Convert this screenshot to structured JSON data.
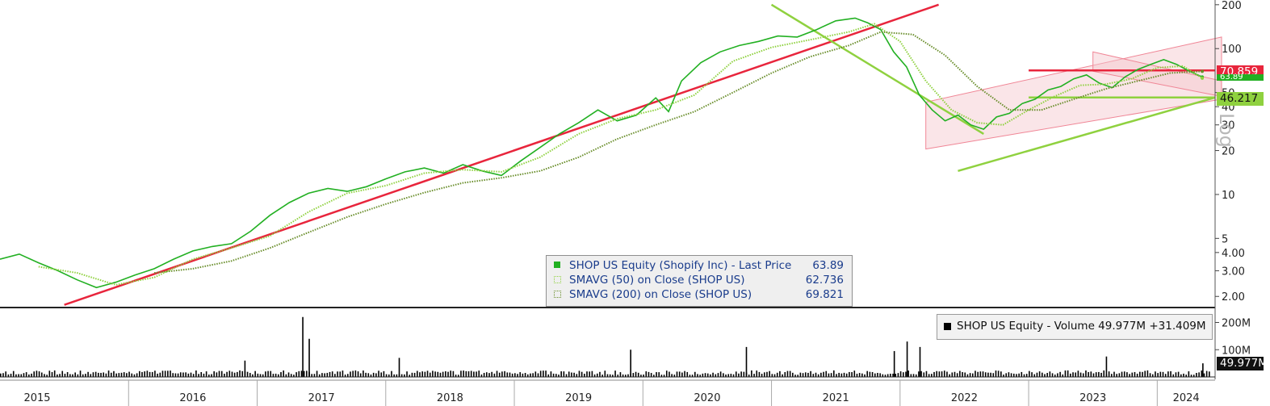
{
  "chart_data": [
    {
      "type": "line",
      "scale": "log",
      "ylim": [
        1.7,
        210
      ],
      "ytick_labels": [
        "200",
        "100",
        "50",
        "40",
        "30",
        "20",
        "10",
        "5",
        "4.00",
        "3.00",
        "2.00"
      ],
      "ytick_values": [
        200,
        100,
        50,
        40,
        30,
        20,
        10,
        5,
        4,
        3,
        2
      ],
      "yaxis_title": "Log",
      "x_labels": [
        "2015",
        "2016",
        "2017",
        "2018",
        "2019",
        "2020",
        "2021",
        "2022",
        "2023",
        "2024"
      ],
      "xlim": [
        2015.0,
        2024.45
      ],
      "series": [
        {
          "name": "SHOP US Equity (Shopify Inc) - Last Price",
          "last": "63.89",
          "color": "#22b022",
          "x": [
            2015.0,
            2015.15,
            2015.3,
            2015.45,
            2015.6,
            2015.75,
            2015.9,
            2016.05,
            2016.2,
            2016.35,
            2016.5,
            2016.65,
            2016.8,
            2016.95,
            2017.1,
            2017.25,
            2017.4,
            2017.55,
            2017.7,
            2017.85,
            2018.0,
            2018.15,
            2018.3,
            2018.45,
            2018.6,
            2018.75,
            2018.9,
            2019.05,
            2019.2,
            2019.35,
            2019.5,
            2019.65,
            2019.8,
            2019.95,
            2020.1,
            2020.2,
            2020.3,
            2020.45,
            2020.6,
            2020.75,
            2020.9,
            2021.05,
            2021.2,
            2021.35,
            2021.5,
            2021.65,
            2021.75,
            2021.85,
            2021.95,
            2022.05,
            2022.15,
            2022.25,
            2022.35,
            2022.45,
            2022.55,
            2022.65,
            2022.75,
            2022.85,
            2022.95,
            2023.05,
            2023.15,
            2023.25,
            2023.35,
            2023.45,
            2023.55,
            2023.65,
            2023.75,
            2023.85,
            2023.95,
            2024.05,
            2024.15,
            2024.25,
            2024.35
          ],
          "values": [
            3.6,
            3.9,
            3.4,
            3.0,
            2.6,
            2.3,
            2.5,
            2.8,
            3.1,
            3.6,
            4.1,
            4.4,
            4.6,
            5.6,
            7.2,
            8.8,
            10.2,
            11.0,
            10.5,
            11.3,
            12.8,
            14.3,
            15.2,
            14.0,
            16.0,
            14.5,
            13.5,
            17.0,
            21.0,
            26.0,
            31.0,
            38.0,
            32.0,
            35.0,
            46.0,
            37.0,
            60.0,
            80.0,
            95.0,
            105.0,
            112.0,
            122.0,
            120.0,
            135.0,
            155.0,
            162.0,
            150.0,
            135.0,
            95.0,
            75.0,
            48.0,
            38.0,
            32.0,
            35.0,
            30.0,
            28.0,
            34.0,
            36.0,
            42.0,
            45.0,
            52.0,
            55.0,
            62.0,
            66.0,
            58.0,
            54.0,
            64.0,
            72.0,
            78.0,
            84.0,
            78.0,
            70.0,
            63.89
          ]
        },
        {
          "name": "SMAVG (50) on Close (SHOP US)",
          "last": "62.736",
          "color": "#8fd13f",
          "x": [
            2015.3,
            2015.6,
            2015.9,
            2016.2,
            2016.5,
            2016.8,
            2017.1,
            2017.4,
            2017.7,
            2018.0,
            2018.3,
            2018.6,
            2018.9,
            2019.2,
            2019.5,
            2019.8,
            2020.1,
            2020.4,
            2020.7,
            2021.0,
            2021.3,
            2021.6,
            2021.8,
            2022.0,
            2022.2,
            2022.4,
            2022.6,
            2022.8,
            2023.0,
            2023.2,
            2023.4,
            2023.6,
            2023.8,
            2024.0,
            2024.2,
            2024.35
          ],
          "values": [
            3.2,
            2.9,
            2.4,
            2.7,
            3.6,
            4.3,
            5.2,
            7.6,
            10.2,
            11.5,
            14.0,
            14.8,
            14.3,
            18.0,
            26.0,
            33.0,
            38.0,
            48.0,
            82.0,
            102.0,
            115.0,
            130.0,
            148.0,
            112.0,
            60.0,
            38.0,
            31.0,
            30.0,
            38.0,
            47.0,
            56.0,
            57.0,
            62.0,
            74.0,
            76.0,
            62.736
          ]
        },
        {
          "name": "SMAVG (200) on Close (SHOP US)",
          "last": "69.821",
          "color": "#6a8e2c",
          "x": [
            2016.2,
            2016.5,
            2016.8,
            2017.1,
            2017.4,
            2017.7,
            2018.0,
            2018.3,
            2018.6,
            2018.9,
            2019.2,
            2019.5,
            2019.8,
            2020.1,
            2020.4,
            2020.7,
            2021.0,
            2021.3,
            2021.6,
            2021.85,
            2022.1,
            2022.35,
            2022.6,
            2022.85,
            2023.1,
            2023.35,
            2023.6,
            2023.85,
            2024.1,
            2024.35
          ],
          "values": [
            2.9,
            3.1,
            3.5,
            4.3,
            5.5,
            7.0,
            8.6,
            10.3,
            12.0,
            13.0,
            14.5,
            18.0,
            24.0,
            30.0,
            37.0,
            50.0,
            68.0,
            88.0,
            105.0,
            130.0,
            125.0,
            90.0,
            55.0,
            38.0,
            38.0,
            45.0,
            53.0,
            60.0,
            68.0,
            69.821
          ]
        }
      ],
      "trendlines": [
        {
          "color": "#e8253c",
          "from": [
            2015.5,
            1.75
          ],
          "to": [
            2022.3,
            200
          ]
        },
        {
          "color": "#e8253c",
          "from": [
            2023.0,
            70.859
          ],
          "to": [
            2024.45,
            70.859
          ]
        },
        {
          "color": "#8fd13f",
          "from": [
            2023.0,
            46.217
          ],
          "to": [
            2024.45,
            46.217
          ]
        },
        {
          "color": "#8fd13f",
          "from": [
            2021.0,
            200
          ],
          "to": [
            2022.65,
            26
          ]
        },
        {
          "color": "#8fd13f",
          "from": [
            2022.45,
            14.5
          ],
          "to": [
            2024.45,
            46.217
          ]
        }
      ],
      "channels": [
        {
          "color": "#f5c5cc",
          "edge_color": "#f08696",
          "lower": [
            [
              2022.2,
              20.5
            ],
            [
              2024.5,
              45
            ]
          ],
          "upper": [
            [
              2022.2,
              43
            ],
            [
              2024.5,
              120
            ]
          ]
        },
        {
          "color": "#f5c5cc",
          "edge_color": "#f08696",
          "lower": [
            [
              2023.5,
              70
            ],
            [
              2024.5,
              47
            ]
          ],
          "upper": [
            [
              2023.5,
              95
            ],
            [
              2024.5,
              60
            ]
          ]
        }
      ],
      "price_tags": [
        {
          "text": "70.859",
          "bg": "#e8253c",
          "fg": "#ffffff"
        },
        {
          "text": "63.89",
          "bg": "#22b022",
          "fg": "#ffffff"
        },
        {
          "text": "46.217",
          "bg": "#8fd13f",
          "fg": "#111111"
        }
      ],
      "legend": {
        "rows": [
          {
            "label": "SHOP US Equity (Shopify Inc) - Last Price",
            "value": "63.89"
          },
          {
            "label": "SMAVG (50)  on Close (SHOP US)",
            "value": "62.736"
          },
          {
            "label": "SMAVG (200)  on Close (SHOP US)",
            "value": "69.821"
          }
        ]
      }
    },
    {
      "type": "bar",
      "ytick_labels": [
        "200M",
        "100M"
      ],
      "ytick_values": [
        200,
        100
      ],
      "unit": "M",
      "ylim": [
        0,
        240
      ],
      "series": [
        {
          "name": "SHOP US Equity - Volume",
          "last": "49.977M",
          "change": "+31.409M",
          "color": "#000000"
        }
      ],
      "spikes": [
        {
          "x": 2017.35,
          "value": 220
        },
        {
          "x": 2017.4,
          "value": 140
        },
        {
          "x": 2021.95,
          "value": 95
        },
        {
          "x": 2022.05,
          "value": 130
        },
        {
          "x": 2022.15,
          "value": 110
        },
        {
          "x": 2020.8,
          "value": 110
        },
        {
          "x": 2019.9,
          "value": 100
        },
        {
          "x": 2016.9,
          "value": 60
        },
        {
          "x": 2018.1,
          "value": 70
        },
        {
          "x": 2023.6,
          "value": 75
        },
        {
          "x": 2024.35,
          "value": 49.977
        }
      ],
      "legend_text": "SHOP US Equity - Volume 49.977M +31.409M",
      "tag": "49.977M"
    }
  ]
}
